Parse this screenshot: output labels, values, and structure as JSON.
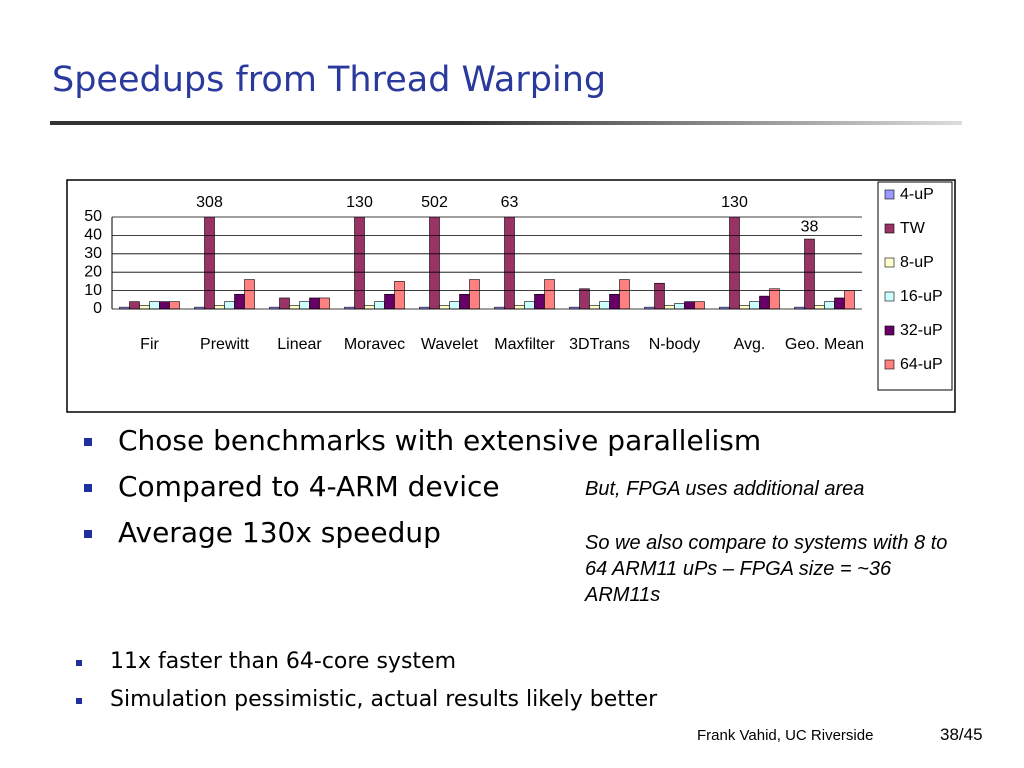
{
  "title": "Speedups from Thread Warping",
  "chart_data": {
    "type": "grouped-bar",
    "categories": [
      "Fir",
      "Prewitt",
      "Linear",
      "Moravec",
      "Wavelet",
      "Maxfilter",
      "3DTrans",
      "N-body",
      "Avg.",
      "Geo. Mean"
    ],
    "series": [
      {
        "name": "4-uP",
        "color": "#9999ff",
        "values": [
          1,
          1,
          1,
          1,
          1,
          1,
          1,
          1,
          1,
          1
        ]
      },
      {
        "name": "TW",
        "color": "#993366",
        "values": [
          4,
          308,
          6,
          130,
          502,
          63,
          11,
          14,
          130,
          38
        ],
        "value_labels": [
          null,
          "308",
          null,
          "130",
          "502",
          "63",
          null,
          null,
          "130",
          "38"
        ]
      },
      {
        "name": "8-uP",
        "color": "#ffffcc",
        "values": [
          2,
          2,
          2,
          2,
          2,
          2,
          2,
          2,
          2,
          2
        ]
      },
      {
        "name": "16-uP",
        "color": "#ccffff",
        "values": [
          4,
          4,
          4,
          4,
          4,
          4,
          4,
          3,
          4,
          4
        ]
      },
      {
        "name": "32-uP",
        "color": "#660066",
        "values": [
          4,
          8,
          6,
          8,
          8,
          8,
          8,
          4,
          7,
          6
        ]
      },
      {
        "name": "64-uP",
        "color": "#ff8080",
        "values": [
          4,
          16,
          6,
          15,
          16,
          16,
          16,
          4,
          11,
          10
        ]
      }
    ],
    "ylim": [
      0,
      50
    ],
    "yticks": [
      0,
      10,
      20,
      30,
      40,
      50
    ],
    "grid": true,
    "legend": "right"
  },
  "bullets": [
    "Chose benchmarks with extensive parallelism",
    "Compared to 4-ARM device",
    "Average 130x speedup"
  ],
  "notes": [
    "But, FPGA uses additional area",
    "So we also compare to systems with 8 to 64 ARM11 uPs – FPGA size = ~36 ARM11s"
  ],
  "sub_bullets": [
    "11x faster than 64-core system",
    "Simulation pessimistic, actual results likely better"
  ],
  "footer": "Frank Vahid, UC Riverside",
  "page": "38/45"
}
